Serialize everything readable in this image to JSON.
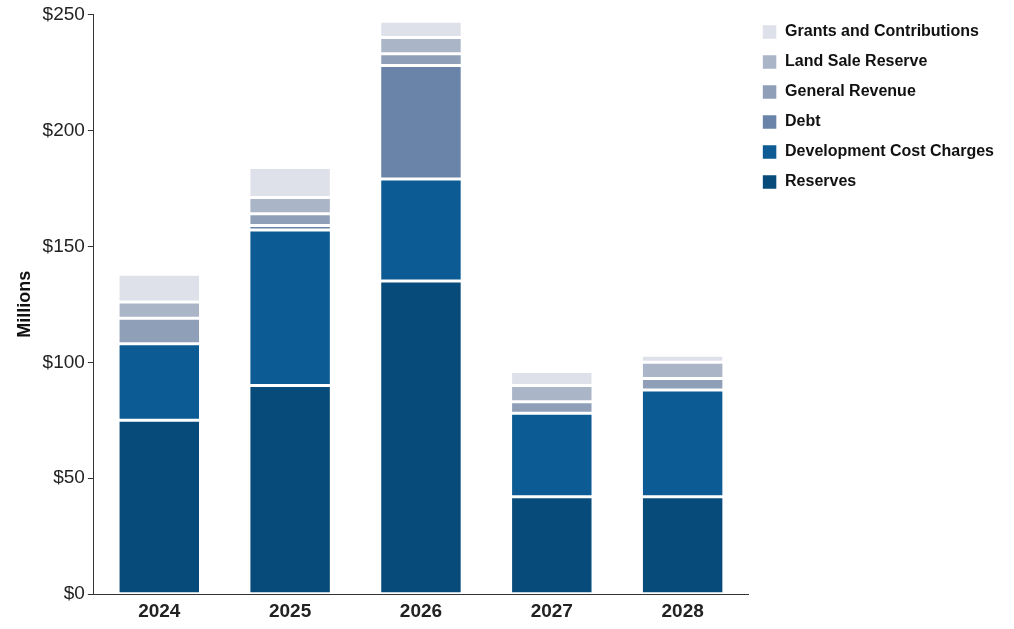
{
  "chart_data": {
    "type": "bar",
    "stacked": true,
    "ylabel": "Millions",
    "categories": [
      "2024",
      "2025",
      "2026",
      "2027",
      "2028"
    ],
    "series": [
      {
        "name": "Reserves",
        "color": "#064b7a",
        "values": [
          75,
          90,
          135,
          42,
          42
        ]
      },
      {
        "name": "Development Cost Charges",
        "color": "#0d5b94",
        "values": [
          33,
          67,
          44,
          36,
          46
        ]
      },
      {
        "name": "Debt",
        "color": "#6a83a8",
        "values": [
          0,
          2,
          49,
          0,
          0
        ]
      },
      {
        "name": "General Revenue",
        "color": "#8f9fb8",
        "values": [
          11,
          5,
          5,
          5,
          5
        ]
      },
      {
        "name": "Land Sale Reserve",
        "color": "#abb5c8",
        "values": [
          7,
          7,
          7,
          7,
          7
        ]
      },
      {
        "name": "Grants and Contributions",
        "color": "#dfe1ea",
        "values": [
          12,
          13,
          7,
          6,
          3
        ]
      }
    ],
    "ylim": [
      0,
      250
    ],
    "yticks": [
      {
        "value": 0,
        "label": "$0"
      },
      {
        "value": 50,
        "label": "$50"
      },
      {
        "value": 100,
        "label": "$100"
      },
      {
        "value": 150,
        "label": "$150"
      },
      {
        "value": 200,
        "label": "$200"
      },
      {
        "value": 250,
        "label": "$250"
      }
    ],
    "grid": false,
    "legend": "right"
  }
}
